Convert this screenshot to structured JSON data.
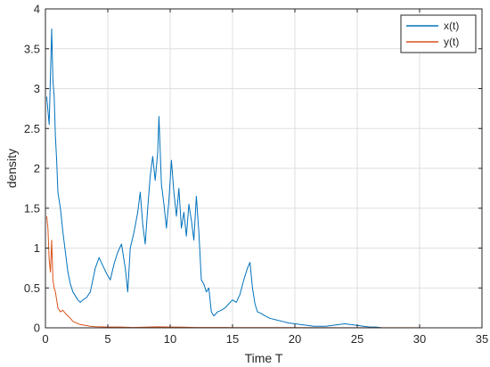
{
  "chart_data": {
    "type": "line",
    "xlabel": "Time T",
    "ylabel": "density",
    "xlim": [
      0,
      35
    ],
    "ylim": [
      0,
      4
    ],
    "xticks": [
      0,
      5,
      10,
      15,
      20,
      25,
      30,
      35
    ],
    "yticks": [
      0,
      0.5,
      1,
      1.5,
      2,
      2.5,
      3,
      3.5,
      4
    ],
    "xtick_labels": [
      "0",
      "5",
      "10",
      "15",
      "20",
      "25",
      "30",
      "35"
    ],
    "ytick_labels": [
      "0",
      "0.5",
      "1",
      "1.5",
      "2",
      "2.5",
      "3",
      "3.5",
      "4"
    ],
    "grid": true,
    "legend_position": "top-right",
    "series": [
      {
        "name": "x(t)",
        "color": "#0072BD",
        "x": [
          0.1,
          0.3,
          0.5,
          0.6,
          0.7,
          0.8,
          0.9,
          1.0,
          1.2,
          1.4,
          1.6,
          1.8,
          2.0,
          2.2,
          2.4,
          2.6,
          2.8,
          3.0,
          3.3,
          3.6,
          4.0,
          4.3,
          4.6,
          4.9,
          5.2,
          5.5,
          5.8,
          6.1,
          6.4,
          6.6,
          6.8,
          7.1,
          7.4,
          7.6,
          7.8,
          8.0,
          8.2,
          8.4,
          8.6,
          8.8,
          9.0,
          9.1,
          9.3,
          9.5,
          9.7,
          9.9,
          10.1,
          10.3,
          10.5,
          10.7,
          10.9,
          11.1,
          11.3,
          11.5,
          11.7,
          11.9,
          12.1,
          12.3,
          12.5,
          12.7,
          12.9,
          13.1,
          13.3,
          13.5,
          13.8,
          14.1,
          14.4,
          14.7,
          15.0,
          15.3,
          15.6,
          15.9,
          16.2,
          16.4,
          16.6,
          16.8,
          17.0,
          17.3,
          17.6,
          18.0,
          18.5,
          19.0,
          19.5,
          20.0,
          20.5,
          21.0,
          21.5,
          22.0,
          22.5,
          23.0,
          23.5,
          24.0,
          24.5,
          25.0,
          25.5,
          26.0,
          26.5,
          27.0,
          28.0,
          29.0,
          30.0
        ],
        "values": [
          2.9,
          2.55,
          3.75,
          3.1,
          2.9,
          2.4,
          2.1,
          1.7,
          1.5,
          1.2,
          0.95,
          0.7,
          0.55,
          0.45,
          0.4,
          0.35,
          0.32,
          0.35,
          0.38,
          0.45,
          0.75,
          0.88,
          0.78,
          0.68,
          0.6,
          0.8,
          0.95,
          1.05,
          0.75,
          0.45,
          1.0,
          1.2,
          1.45,
          1.7,
          1.3,
          1.05,
          1.5,
          1.9,
          2.15,
          1.85,
          2.2,
          2.65,
          1.8,
          1.55,
          1.25,
          1.6,
          2.1,
          1.7,
          1.4,
          1.75,
          1.25,
          1.45,
          1.15,
          1.55,
          1.35,
          1.1,
          1.65,
          1.2,
          0.6,
          0.55,
          0.45,
          0.5,
          0.2,
          0.15,
          0.2,
          0.22,
          0.25,
          0.3,
          0.35,
          0.32,
          0.42,
          0.6,
          0.75,
          0.82,
          0.5,
          0.3,
          0.2,
          0.18,
          0.15,
          0.12,
          0.1,
          0.08,
          0.06,
          0.05,
          0.04,
          0.03,
          0.02,
          0.02,
          0.02,
          0.03,
          0.04,
          0.05,
          0.04,
          0.03,
          0.02,
          0.01,
          0.01,
          0.0,
          0.0,
          0.0,
          0.0
        ]
      },
      {
        "name": "y(t)",
        "color": "#D95319",
        "x": [
          0.1,
          0.2,
          0.3,
          0.4,
          0.5,
          0.6,
          0.7,
          0.8,
          0.9,
          1.0,
          1.2,
          1.4,
          1.6,
          1.8,
          2.0,
          2.2,
          2.5,
          2.8,
          3.2,
          3.6,
          4.0,
          5.0,
          6.0,
          7.0,
          8.0,
          9.0,
          10.0,
          11.0,
          12.0,
          13.0,
          15.0,
          20.0,
          25.0,
          30.0
        ],
        "values": [
          1.4,
          1.25,
          0.85,
          0.7,
          1.1,
          0.6,
          0.5,
          0.45,
          0.35,
          0.25,
          0.2,
          0.22,
          0.18,
          0.15,
          0.12,
          0.08,
          0.06,
          0.04,
          0.03,
          0.02,
          0.015,
          0.01,
          0.01,
          0.005,
          0.008,
          0.012,
          0.01,
          0.008,
          0.005,
          0.004,
          0.003,
          0.002,
          0.001,
          0.001
        ]
      }
    ]
  }
}
